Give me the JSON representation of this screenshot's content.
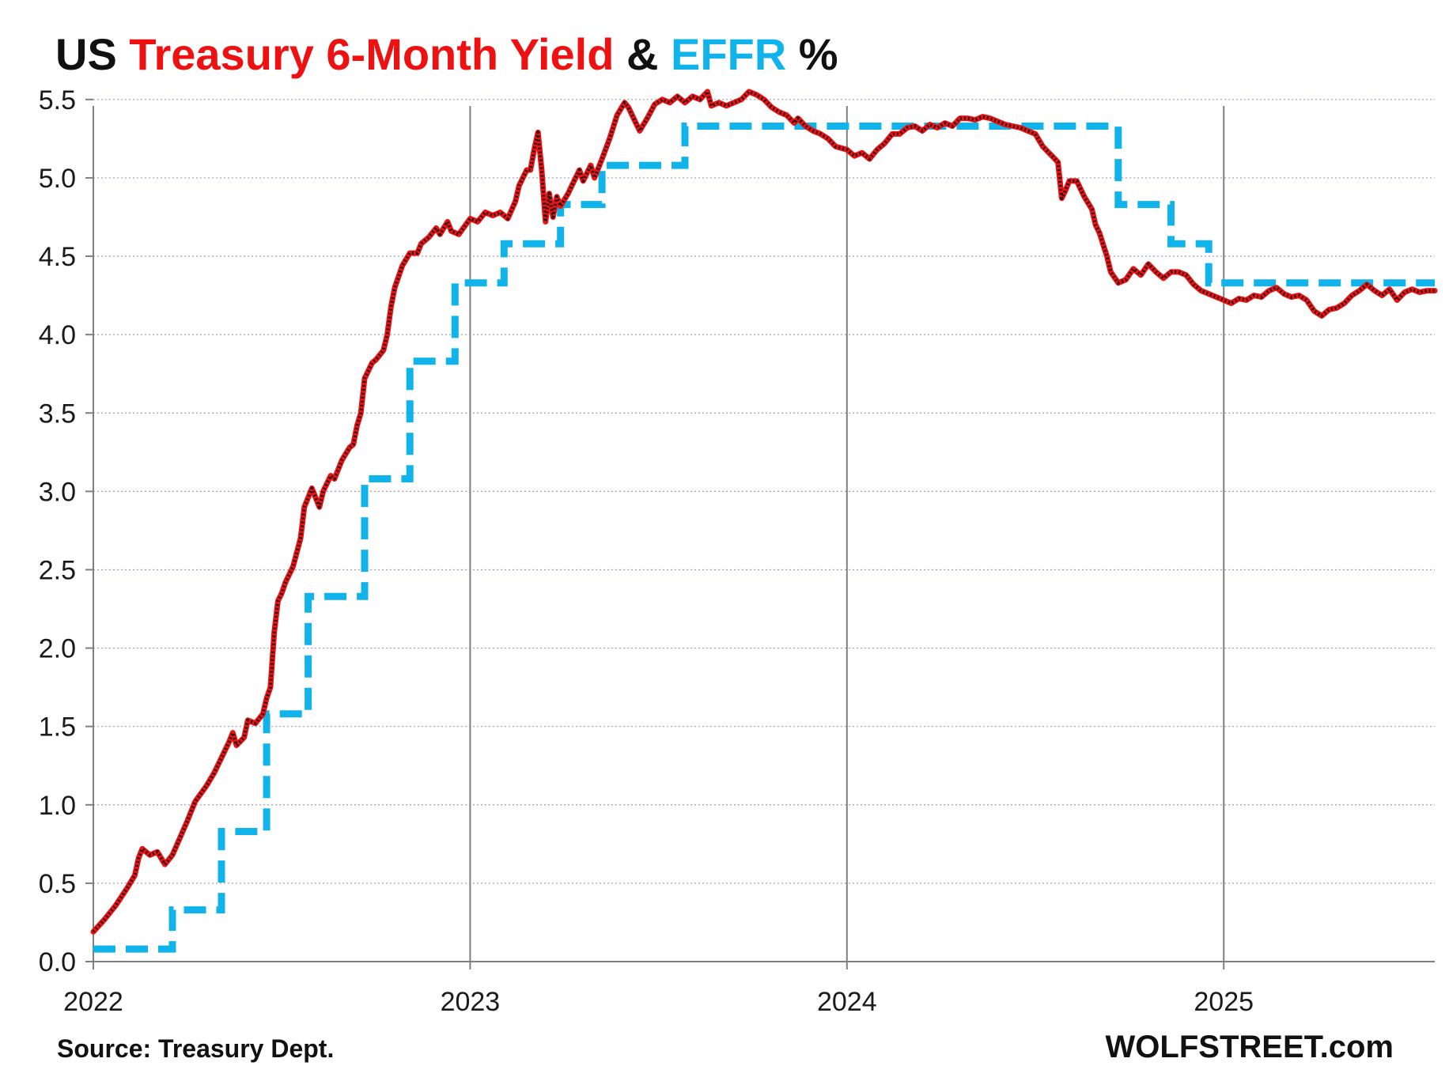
{
  "colors": {
    "treasury": "#ee1111",
    "treasury_dots": "#1a1a1a",
    "effr": "#10b4ea",
    "title_black": "#111111",
    "gridline": "#9aa0b8",
    "year_line": "#7f7f7f"
  },
  "chart_data": {
    "type": "line",
    "title_parts": [
      "US ",
      "Treasury 6-Month Yield",
      " & ",
      "EFFR",
      " %"
    ],
    "source": "Source: Treasury Dept.",
    "brand": "WOLFSTREET.com",
    "xlabel": "",
    "ylabel": "",
    "xlim": [
      2022.0,
      2025.56
    ],
    "ylim": [
      0,
      5.6
    ],
    "yticks": [
      "0.0",
      "0.5",
      "1.0",
      "1.5",
      "2.0",
      "2.5",
      "3.0",
      "3.5",
      "4.0",
      "4.5",
      "5.0",
      "5.5"
    ],
    "xticks": [
      {
        "label": "2022",
        "value": 2022.0
      },
      {
        "label": "2023",
        "value": 2023.0
      },
      {
        "label": "2024",
        "value": 2024.0
      },
      {
        "label": "2025",
        "value": 2025.0
      }
    ],
    "grid": true,
    "series": [
      {
        "name": "Treasury 6-Month Yield",
        "style": "solid",
        "points": [
          [
            2022.0,
            0.19
          ],
          [
            2022.03,
            0.27
          ],
          [
            2022.06,
            0.36
          ],
          [
            2022.09,
            0.47
          ],
          [
            2022.11,
            0.55
          ],
          [
            2022.12,
            0.66
          ],
          [
            2022.13,
            0.72
          ],
          [
            2022.15,
            0.68
          ],
          [
            2022.17,
            0.7
          ],
          [
            2022.19,
            0.62
          ],
          [
            2022.21,
            0.68
          ],
          [
            2022.23,
            0.79
          ],
          [
            2022.25,
            0.9
          ],
          [
            2022.27,
            1.02
          ],
          [
            2022.3,
            1.12
          ],
          [
            2022.32,
            1.2
          ],
          [
            2022.34,
            1.3
          ],
          [
            2022.36,
            1.4
          ],
          [
            2022.37,
            1.46
          ],
          [
            2022.38,
            1.38
          ],
          [
            2022.4,
            1.43
          ],
          [
            2022.41,
            1.54
          ],
          [
            2022.43,
            1.52
          ],
          [
            2022.45,
            1.58
          ],
          [
            2022.46,
            1.68
          ],
          [
            2022.47,
            1.75
          ],
          [
            2022.48,
            2.1
          ],
          [
            2022.49,
            2.3
          ],
          [
            2022.5,
            2.35
          ],
          [
            2022.51,
            2.42
          ],
          [
            2022.53,
            2.52
          ],
          [
            2022.55,
            2.7
          ],
          [
            2022.56,
            2.9
          ],
          [
            2022.58,
            3.02
          ],
          [
            2022.6,
            2.9
          ],
          [
            2022.61,
            3.0
          ],
          [
            2022.63,
            3.1
          ],
          [
            2022.64,
            3.08
          ],
          [
            2022.66,
            3.2
          ],
          [
            2022.68,
            3.28
          ],
          [
            2022.69,
            3.3
          ],
          [
            2022.7,
            3.42
          ],
          [
            2022.71,
            3.5
          ],
          [
            2022.72,
            3.72
          ],
          [
            2022.74,
            3.82
          ],
          [
            2022.75,
            3.84
          ],
          [
            2022.77,
            3.9
          ],
          [
            2022.78,
            4.0
          ],
          [
            2022.79,
            4.18
          ],
          [
            2022.8,
            4.3
          ],
          [
            2022.82,
            4.44
          ],
          [
            2022.84,
            4.52
          ],
          [
            2022.86,
            4.52
          ],
          [
            2022.87,
            4.58
          ],
          [
            2022.89,
            4.62
          ],
          [
            2022.91,
            4.68
          ],
          [
            2022.92,
            4.64
          ],
          [
            2022.94,
            4.72
          ],
          [
            2022.95,
            4.66
          ],
          [
            2022.97,
            4.64
          ],
          [
            2023.0,
            4.74
          ],
          [
            2023.02,
            4.72
          ],
          [
            2023.04,
            4.78
          ],
          [
            2023.06,
            4.76
          ],
          [
            2023.08,
            4.78
          ],
          [
            2023.1,
            4.74
          ],
          [
            2023.12,
            4.85
          ],
          [
            2023.13,
            4.95
          ],
          [
            2023.15,
            5.05
          ],
          [
            2023.16,
            5.05
          ],
          [
            2023.17,
            5.18
          ],
          [
            2023.18,
            5.29
          ],
          [
            2023.19,
            5.05
          ],
          [
            2023.2,
            4.72
          ],
          [
            2023.21,
            4.9
          ],
          [
            2023.22,
            4.75
          ],
          [
            2023.23,
            4.88
          ],
          [
            2023.24,
            4.82
          ],
          [
            2023.26,
            4.9
          ],
          [
            2023.27,
            4.95
          ],
          [
            2023.29,
            5.05
          ],
          [
            2023.3,
            4.98
          ],
          [
            2023.32,
            5.08
          ],
          [
            2023.33,
            5.0
          ],
          [
            2023.35,
            5.12
          ],
          [
            2023.37,
            5.25
          ],
          [
            2023.39,
            5.4
          ],
          [
            2023.41,
            5.48
          ],
          [
            2023.42,
            5.45
          ],
          [
            2023.44,
            5.35
          ],
          [
            2023.45,
            5.3
          ],
          [
            2023.47,
            5.38
          ],
          [
            2023.49,
            5.47
          ],
          [
            2023.51,
            5.5
          ],
          [
            2023.53,
            5.48
          ],
          [
            2023.55,
            5.52
          ],
          [
            2023.57,
            5.48
          ],
          [
            2023.59,
            5.52
          ],
          [
            2023.61,
            5.5
          ],
          [
            2023.63,
            5.55
          ],
          [
            2023.64,
            5.46
          ],
          [
            2023.66,
            5.48
          ],
          [
            2023.68,
            5.46
          ],
          [
            2023.7,
            5.48
          ],
          [
            2023.72,
            5.5
          ],
          [
            2023.74,
            5.55
          ],
          [
            2023.76,
            5.53
          ],
          [
            2023.78,
            5.5
          ],
          [
            2023.8,
            5.45
          ],
          [
            2023.82,
            5.42
          ],
          [
            2023.84,
            5.4
          ],
          [
            2023.86,
            5.35
          ],
          [
            2023.87,
            5.38
          ],
          [
            2023.89,
            5.33
          ],
          [
            2023.91,
            5.3
          ],
          [
            2023.93,
            5.28
          ],
          [
            2023.95,
            5.25
          ],
          [
            2023.97,
            5.2
          ],
          [
            2024.0,
            5.18
          ],
          [
            2024.02,
            5.14
          ],
          [
            2024.04,
            5.16
          ],
          [
            2024.06,
            5.12
          ],
          [
            2024.08,
            5.18
          ],
          [
            2024.1,
            5.22
          ],
          [
            2024.12,
            5.28
          ],
          [
            2024.14,
            5.28
          ],
          [
            2024.16,
            5.32
          ],
          [
            2024.18,
            5.33
          ],
          [
            2024.2,
            5.3
          ],
          [
            2024.22,
            5.34
          ],
          [
            2024.24,
            5.32
          ],
          [
            2024.26,
            5.35
          ],
          [
            2024.28,
            5.33
          ],
          [
            2024.3,
            5.38
          ],
          [
            2024.32,
            5.38
          ],
          [
            2024.34,
            5.37
          ],
          [
            2024.36,
            5.39
          ],
          [
            2024.38,
            5.38
          ],
          [
            2024.4,
            5.36
          ],
          [
            2024.42,
            5.34
          ],
          [
            2024.44,
            5.33
          ],
          [
            2024.46,
            5.32
          ],
          [
            2024.48,
            5.3
          ],
          [
            2024.5,
            5.28
          ],
          [
            2024.52,
            5.2
          ],
          [
            2024.54,
            5.15
          ],
          [
            2024.56,
            5.1
          ],
          [
            2024.57,
            4.87
          ],
          [
            2024.58,
            4.92
          ],
          [
            2024.59,
            4.98
          ],
          [
            2024.61,
            4.98
          ],
          [
            2024.63,
            4.88
          ],
          [
            2024.65,
            4.8
          ],
          [
            2024.66,
            4.7
          ],
          [
            2024.67,
            4.65
          ],
          [
            2024.69,
            4.5
          ],
          [
            2024.7,
            4.4
          ],
          [
            2024.72,
            4.33
          ],
          [
            2024.74,
            4.35
          ],
          [
            2024.76,
            4.42
          ],
          [
            2024.78,
            4.38
          ],
          [
            2024.8,
            4.45
          ],
          [
            2024.82,
            4.4
          ],
          [
            2024.84,
            4.36
          ],
          [
            2024.86,
            4.4
          ],
          [
            2024.88,
            4.4
          ],
          [
            2024.9,
            4.38
          ],
          [
            2024.92,
            4.32
          ],
          [
            2024.94,
            4.28
          ],
          [
            2024.96,
            4.26
          ],
          [
            2025.0,
            4.22
          ],
          [
            2025.02,
            4.2
          ],
          [
            2025.04,
            4.23
          ],
          [
            2025.06,
            4.22
          ],
          [
            2025.08,
            4.25
          ],
          [
            2025.1,
            4.24
          ],
          [
            2025.12,
            4.28
          ],
          [
            2025.14,
            4.3
          ],
          [
            2025.16,
            4.26
          ],
          [
            2025.18,
            4.24
          ],
          [
            2025.2,
            4.25
          ],
          [
            2025.22,
            4.22
          ],
          [
            2025.24,
            4.15
          ],
          [
            2025.26,
            4.12
          ],
          [
            2025.28,
            4.16
          ],
          [
            2025.3,
            4.17
          ],
          [
            2025.32,
            4.2
          ],
          [
            2025.34,
            4.25
          ],
          [
            2025.36,
            4.28
          ],
          [
            2025.38,
            4.32
          ],
          [
            2025.4,
            4.28
          ],
          [
            2025.42,
            4.25
          ],
          [
            2025.44,
            4.29
          ],
          [
            2025.46,
            4.22
          ],
          [
            2025.48,
            4.27
          ],
          [
            2025.5,
            4.29
          ],
          [
            2025.52,
            4.27
          ],
          [
            2025.54,
            4.28
          ],
          [
            2025.56,
            4.28
          ]
        ]
      },
      {
        "name": "EFFR",
        "style": "dashed",
        "points": [
          [
            2022.0,
            0.08
          ],
          [
            2022.21,
            0.08
          ],
          [
            2022.21,
            0.33
          ],
          [
            2022.34,
            0.33
          ],
          [
            2022.34,
            0.83
          ],
          [
            2022.46,
            0.83
          ],
          [
            2022.46,
            1.58
          ],
          [
            2022.57,
            1.58
          ],
          [
            2022.57,
            2.33
          ],
          [
            2022.72,
            2.33
          ],
          [
            2022.72,
            3.08
          ],
          [
            2022.84,
            3.08
          ],
          [
            2022.84,
            3.83
          ],
          [
            2022.96,
            3.83
          ],
          [
            2022.96,
            4.33
          ],
          [
            2023.09,
            4.33
          ],
          [
            2023.09,
            4.58
          ],
          [
            2023.24,
            4.58
          ],
          [
            2023.24,
            4.83
          ],
          [
            2023.35,
            4.83
          ],
          [
            2023.35,
            5.08
          ],
          [
            2023.57,
            5.08
          ],
          [
            2023.57,
            5.33
          ],
          [
            2024.72,
            5.33
          ],
          [
            2024.72,
            4.83
          ],
          [
            2024.86,
            4.83
          ],
          [
            2024.86,
            4.58
          ],
          [
            2024.96,
            4.58
          ],
          [
            2024.96,
            4.33
          ],
          [
            2025.56,
            4.33
          ]
        ]
      }
    ]
  }
}
